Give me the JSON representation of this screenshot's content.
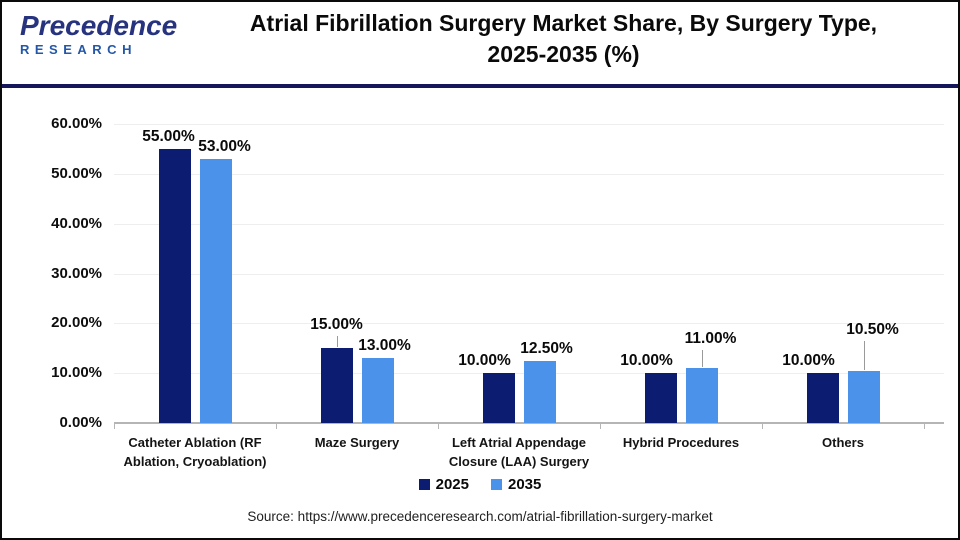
{
  "logo": {
    "name": "Precedence",
    "sub": "RESEARCH"
  },
  "header": {
    "title_lines": [
      "Atrial Fibrillation Surgery Market Share, By Surgery Type,",
      "2025-2035 (%)"
    ]
  },
  "footer": {
    "source_text": "Source: https://www.precedenceresearch.com/atrial-fibrillation-surgery-market"
  },
  "colors": {
    "series_2025": "#0c1c70",
    "series_2035": "#4a92ea",
    "divider": "#16165a",
    "grid": "#eeeeee",
    "axis": "#b5b5b5"
  },
  "chart_data": {
    "type": "bar",
    "title": "Atrial Fibrillation Surgery Market Share, By Surgery Type, 2025-2035 (%)",
    "categories": [
      "Catheter Ablation (RF Ablation, Cryoablation)",
      "Maze Surgery",
      "Left Atrial Appendage Closure (LAA) Surgery",
      "Hybrid Procedures",
      "Others"
    ],
    "series": [
      {
        "name": "2025",
        "color": "#0c1c70",
        "values": [
          55,
          15,
          10,
          10,
          10
        ],
        "value_labels": [
          "55.00%",
          "15.00%",
          "10.00%",
          "10.00%",
          "10.00%"
        ]
      },
      {
        "name": "2035",
        "color": "#4a92ea",
        "values": [
          53,
          13,
          12.5,
          11,
          10.5
        ],
        "value_labels": [
          "53.00%",
          "13.00%",
          "12.50%",
          "11.00%",
          "10.50%"
        ]
      }
    ],
    "xlabel": "",
    "ylabel": "",
    "ylim": [
      0,
      60
    ],
    "ytick_step": 10,
    "ytick_labels": [
      "0.00%",
      "10.00%",
      "20.00%",
      "30.00%",
      "40.00%",
      "50.00%",
      "60.00%"
    ],
    "grid": true,
    "legend_position": "bottom"
  }
}
